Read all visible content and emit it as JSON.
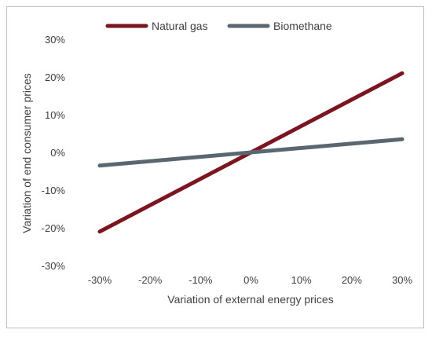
{
  "chart_data": {
    "type": "line",
    "title": "",
    "xlabel": "Variation of external energy prices",
    "ylabel": "Variation of end consumer prices",
    "x": [
      -30,
      30
    ],
    "x_ticks": [
      "-30%",
      "-20%",
      "-10%",
      "0%",
      "10%",
      "20%",
      "30%"
    ],
    "y_ticks": [
      "-30%",
      "-20%",
      "-10%",
      "0%",
      "10%",
      "20%",
      "30%"
    ],
    "xlim": [
      -30,
      30
    ],
    "ylim": [
      -30,
      30
    ],
    "grid": false,
    "legend_position": "top",
    "series": [
      {
        "name": "Natural gas",
        "color": "#7b1520",
        "values": [
          -21,
          21
        ]
      },
      {
        "name": "Biomethane",
        "color": "#5b6770",
        "values": [
          -3.5,
          3.5
        ]
      }
    ]
  }
}
